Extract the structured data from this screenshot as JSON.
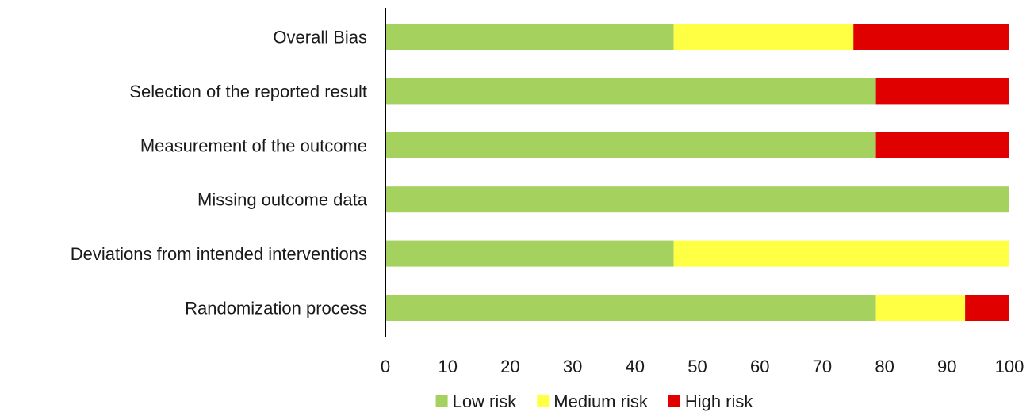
{
  "chart_data": {
    "type": "bar",
    "orientation": "horizontal",
    "stacked": true,
    "categories": [
      "Overall Bias",
      "Selection of the reported result",
      "Measurement of the outcome",
      "Missing outcome data",
      "Deviations from intended interventions",
      "Randomization process"
    ],
    "series": [
      {
        "name": "Low risk",
        "color": "#a5d15f",
        "values": [
          46.2,
          78.6,
          78.6,
          100,
          46.2,
          78.6
        ]
      },
      {
        "name": "Medium risk",
        "color": "#ffff44",
        "values": [
          28.8,
          0,
          0,
          0,
          53.8,
          14.3
        ]
      },
      {
        "name": "High risk",
        "color": "#e00000",
        "values": [
          25.0,
          21.4,
          21.4,
          0,
          0,
          7.1
        ]
      }
    ],
    "xlim": [
      0,
      100
    ],
    "xticks": [
      "0",
      "10",
      "20",
      "30",
      "40",
      "50",
      "60",
      "70",
      "80",
      "90",
      "100"
    ],
    "title": "",
    "xlabel": "",
    "ylabel": "",
    "grid": false,
    "legend_position": "bottom"
  }
}
